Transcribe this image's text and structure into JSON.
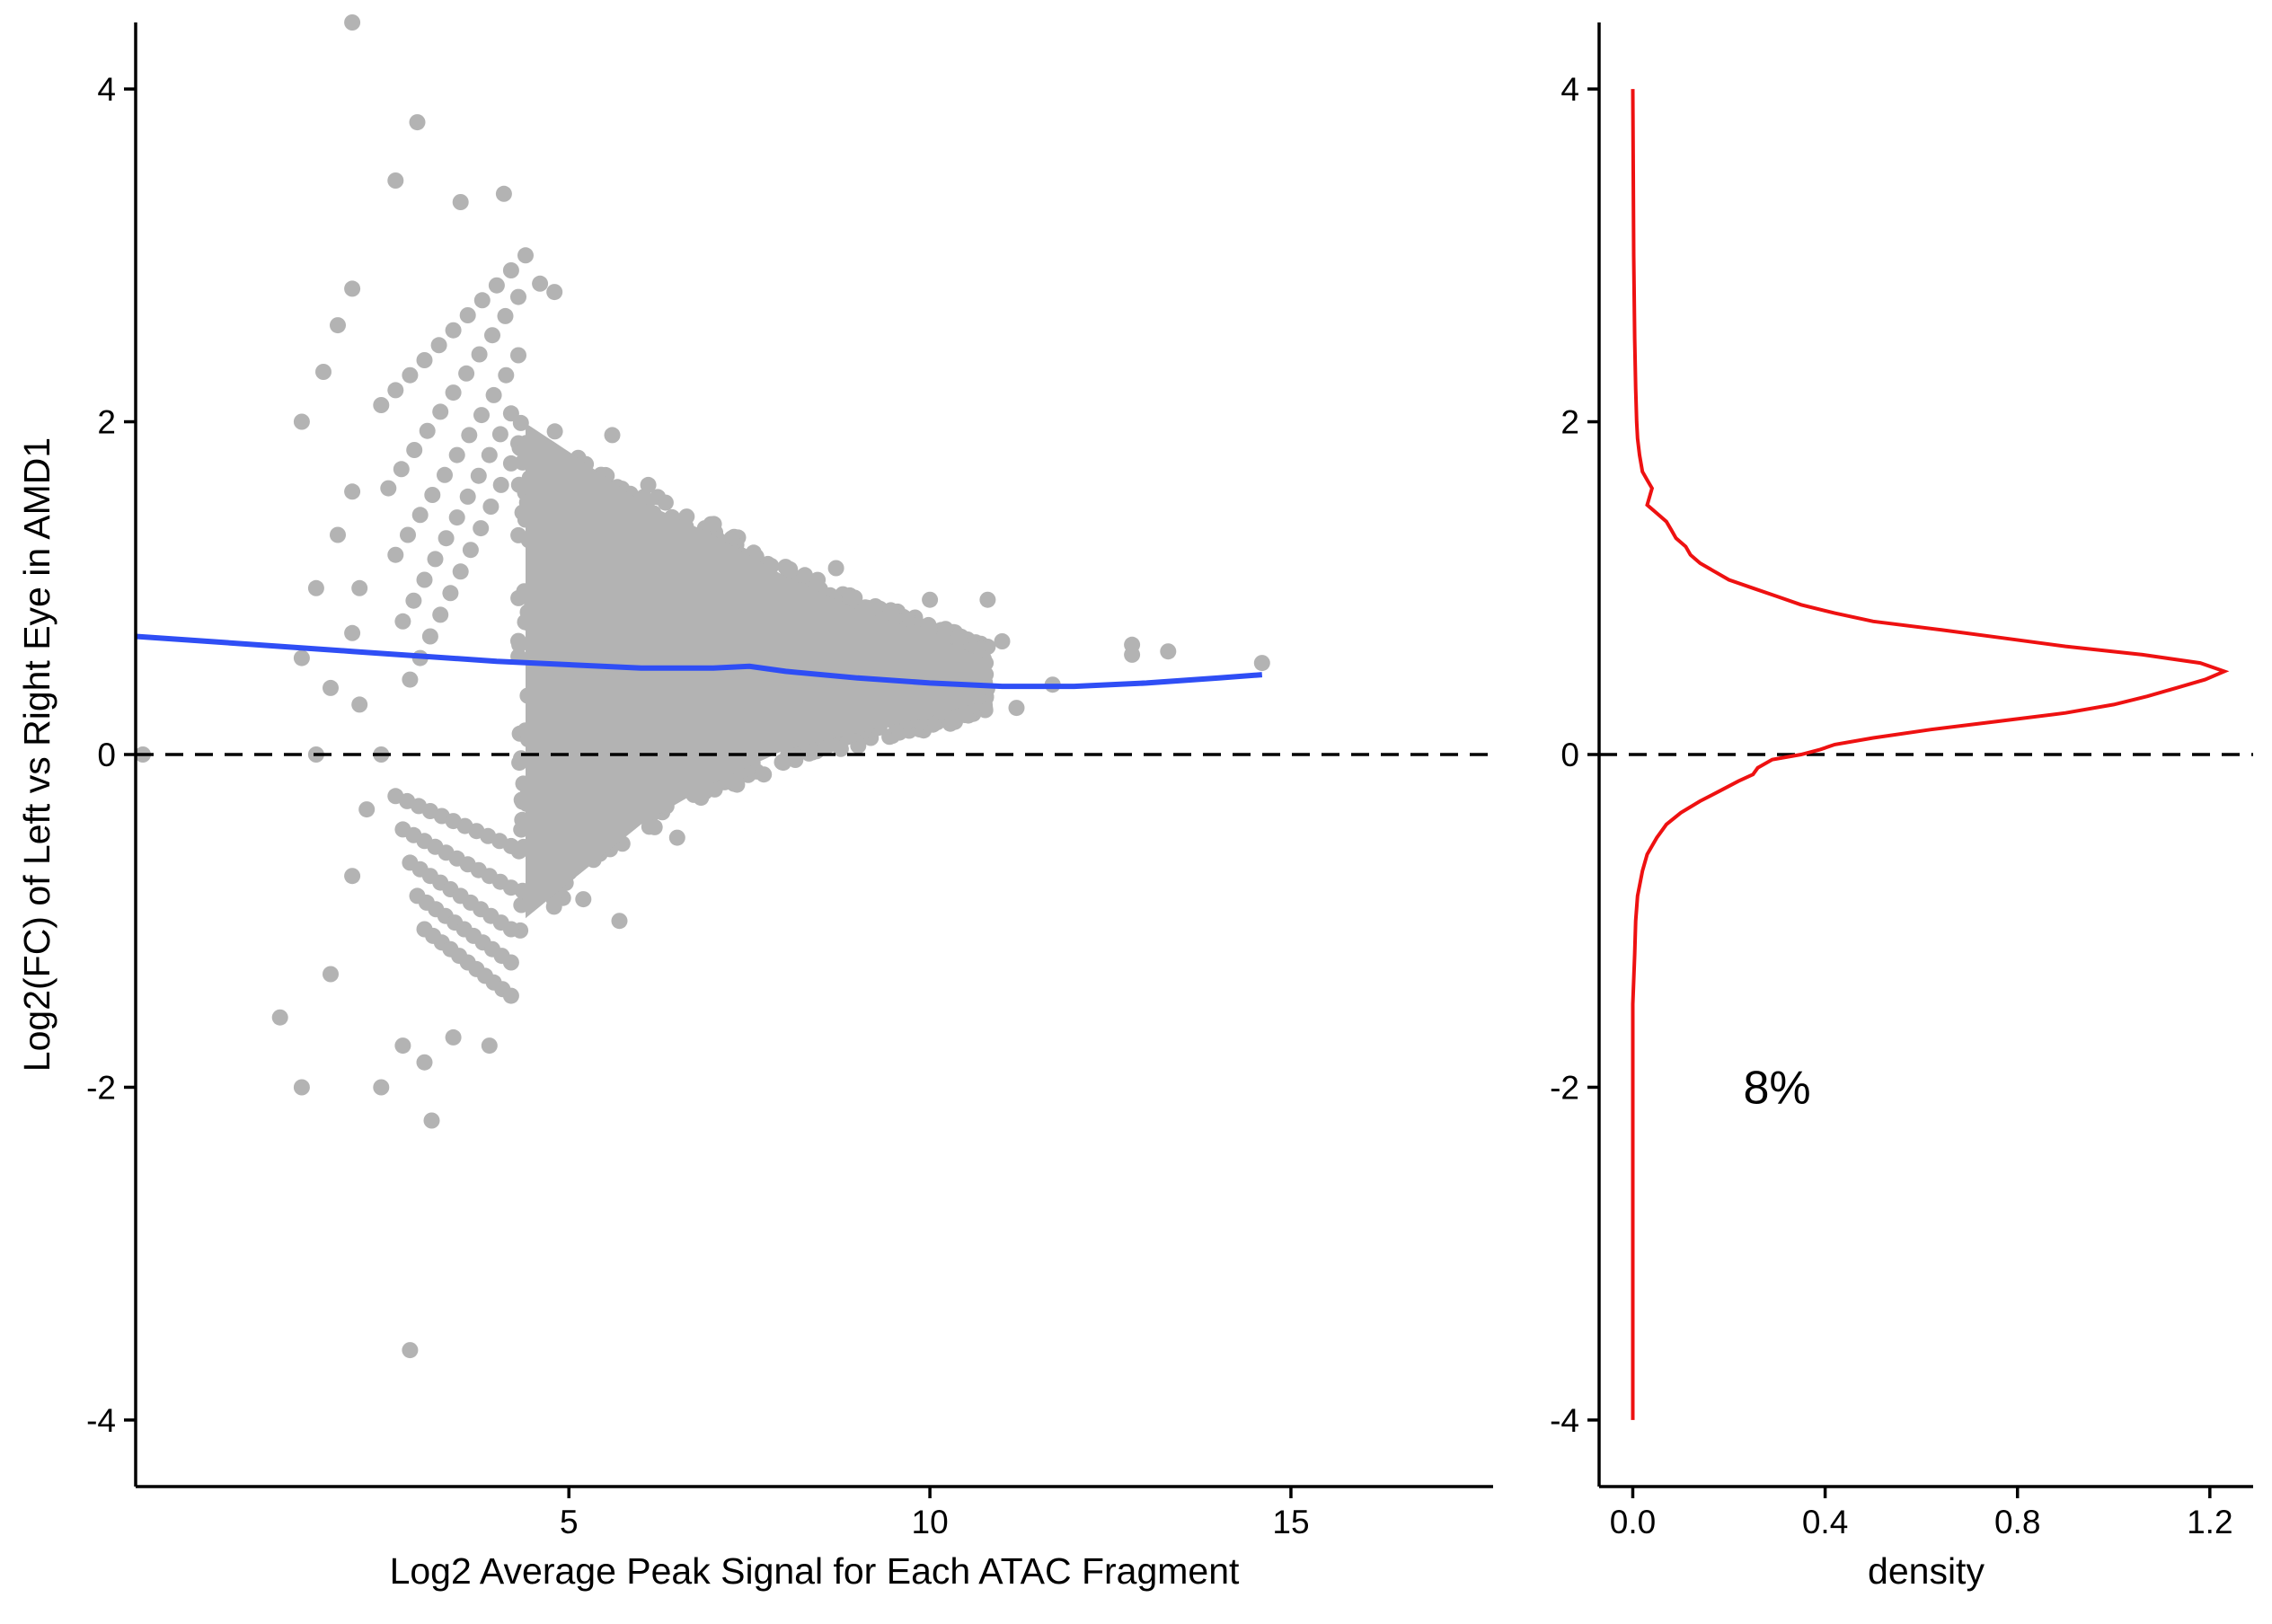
{
  "chart_data": [
    {
      "type": "scatter",
      "title": "",
      "xlabel": "Log2 Average Peak Signal for Each ATAC Fragment",
      "ylabel": "Log2(FC) of Left vs Right Eye in  AMD1",
      "xlim": [
        -1.0,
        17.8
      ],
      "ylim": [
        -4.4,
        4.4
      ],
      "xticks": [
        5,
        10,
        15
      ],
      "xtick_labels": [
        "5",
        "10",
        "15"
      ],
      "yticks": [
        -4,
        -2,
        0,
        2,
        4
      ],
      "ytick_labels": [
        "-4",
        "-2",
        "0",
        "2",
        "4"
      ],
      "grid": false,
      "reference_line": {
        "y": 0,
        "style": "dashed"
      },
      "point_color": "#b3b3b3",
      "cloud": {
        "x_range": [
          4.3,
          10.8
        ],
        "y_center": [
          [
            4.3,
            0.5
          ],
          [
            5.0,
            0.5
          ],
          [
            6.0,
            0.5
          ],
          [
            7.0,
            0.5
          ],
          [
            8.0,
            0.5
          ],
          [
            9.0,
            0.45
          ],
          [
            10.0,
            0.45
          ],
          [
            10.8,
            0.4
          ]
        ],
        "y_upper": [
          [
            4.3,
            2.1
          ],
          [
            5.0,
            1.9
          ],
          [
            6.0,
            1.6
          ],
          [
            7.0,
            1.4
          ],
          [
            8.0,
            1.15
          ],
          [
            9.0,
            0.95
          ],
          [
            10.0,
            0.8
          ],
          [
            10.8,
            0.65
          ]
        ],
        "y_lower": [
          [
            4.3,
            -1.1
          ],
          [
            5.0,
            -0.85
          ],
          [
            6.0,
            -0.5
          ],
          [
            7.0,
            -0.25
          ],
          [
            8.0,
            -0.05
          ],
          [
            9.0,
            0.05
          ],
          [
            10.0,
            0.15
          ],
          [
            10.8,
            0.25
          ]
        ]
      },
      "points": [
        {
          "x": -0.9,
          "y": 0.0
        },
        {
          "x": 2.0,
          "y": 4.4
        },
        {
          "x": 2.9,
          "y": 3.8
        },
        {
          "x": 2.6,
          "y": 3.45
        },
        {
          "x": 1.6,
          "y": 2.3
        },
        {
          "x": 2.0,
          "y": 2.8
        },
        {
          "x": 1.8,
          "y": 2.58
        },
        {
          "x": 1.3,
          "y": 2.0
        },
        {
          "x": 2.0,
          "y": 1.58
        },
        {
          "x": 1.8,
          "y": 1.32
        },
        {
          "x": 1.5,
          "y": 1.0
        },
        {
          "x": 2.1,
          "y": 1.0
        },
        {
          "x": 2.0,
          "y": 0.73
        },
        {
          "x": 1.3,
          "y": 0.58
        },
        {
          "x": 1.7,
          "y": 0.4
        },
        {
          "x": 2.1,
          "y": 0.3
        },
        {
          "x": 1.5,
          "y": 0.0
        },
        {
          "x": 2.4,
          "y": 0.0
        },
        {
          "x": 2.2,
          "y": -0.33
        },
        {
          "x": 2.0,
          "y": -0.73
        },
        {
          "x": 1.7,
          "y": -1.32
        },
        {
          "x": 1.0,
          "y": -1.58
        },
        {
          "x": 1.3,
          "y": -2.0
        },
        {
          "x": 2.4,
          "y": -2.0
        },
        {
          "x": 3.1,
          "y": -2.2
        },
        {
          "x": 2.8,
          "y": -3.58
        },
        {
          "x": 2.7,
          "y": -1.75
        },
        {
          "x": 3.0,
          "y": -1.85
        },
        {
          "x": 3.4,
          "y": -1.7
        },
        {
          "x": 3.9,
          "y": -1.75
        },
        {
          "x": 4.1,
          "y": 3.37
        },
        {
          "x": 3.5,
          "y": 3.32
        },
        {
          "x": 4.6,
          "y": 2.83
        },
        {
          "x": 4.8,
          "y": 2.78
        },
        {
          "x": 5.6,
          "y": 1.92
        },
        {
          "x": 6.1,
          "y": 1.62
        },
        {
          "x": 7.2,
          "y": 1.2
        },
        {
          "x": 8.7,
          "y": 1.12
        },
        {
          "x": 10.8,
          "y": 0.93
        },
        {
          "x": 10.0,
          "y": 0.93
        },
        {
          "x": 11.0,
          "y": 0.68
        },
        {
          "x": 12.8,
          "y": 0.66
        },
        {
          "x": 13.3,
          "y": 0.62
        },
        {
          "x": 12.8,
          "y": 0.6
        },
        {
          "x": 14.6,
          "y": 0.55
        },
        {
          "x": 11.7,
          "y": 0.42
        },
        {
          "x": 11.2,
          "y": 0.28
        },
        {
          "x": 6.5,
          "y": -0.5
        },
        {
          "x": 7.7,
          "y": -0.12
        },
        {
          "x": 5.7,
          "y": -1.0
        },
        {
          "x": 5.2,
          "y": -0.87
        }
      ],
      "fan_lines": [
        {
          "x0": 2.4,
          "y0": 2.1,
          "x1": 4.4,
          "y1": 3.0
        },
        {
          "x0": 2.5,
          "y0": 1.6,
          "x1": 4.3,
          "y1": 2.75
        },
        {
          "x0": 2.6,
          "y0": 1.2,
          "x1": 4.3,
          "y1": 2.4
        },
        {
          "x0": 2.7,
          "y0": 0.8,
          "x1": 4.2,
          "y1": 2.05
        },
        {
          "x0": 2.8,
          "y0": 0.45,
          "x1": 4.2,
          "y1": 1.75
        },
        {
          "x0": 2.6,
          "y0": -0.25,
          "x1": 4.2,
          "y1": -0.55
        },
        {
          "x0": 2.7,
          "y0": -0.45,
          "x1": 4.2,
          "y1": -0.8
        },
        {
          "x0": 2.8,
          "y0": -0.65,
          "x1": 4.2,
          "y1": -1.05
        },
        {
          "x0": 2.9,
          "y0": -0.85,
          "x1": 4.2,
          "y1": -1.25
        },
        {
          "x0": 3.0,
          "y0": -1.05,
          "x1": 4.2,
          "y1": -1.45
        }
      ],
      "series": [
        {
          "kind": "smooth",
          "color": "#2f4ef5",
          "x": [
            -1.0,
            0,
            1,
            2,
            3,
            4,
            5,
            6,
            7,
            7.5,
            8,
            9,
            10,
            11,
            12,
            13,
            14,
            14.6
          ],
          "y": [
            0.71,
            0.68,
            0.65,
            0.62,
            0.59,
            0.56,
            0.54,
            0.52,
            0.52,
            0.53,
            0.5,
            0.46,
            0.43,
            0.41,
            0.41,
            0.43,
            0.46,
            0.48
          ]
        }
      ]
    },
    {
      "type": "line",
      "title": "",
      "xlabel": "density",
      "ylabel": "",
      "xlim": [
        -0.07,
        1.29
      ],
      "ylim": [
        -4.4,
        4.4
      ],
      "xticks": [
        0.0,
        0.4,
        0.8,
        1.2
      ],
      "xtick_labels": [
        "0.0",
        "0.4",
        "0.8",
        "1.2"
      ],
      "yticks": [
        -4,
        -2,
        0,
        2,
        4
      ],
      "ytick_labels": [
        "-4",
        "-2",
        "0",
        "2",
        "4"
      ],
      "grid": false,
      "reference_line": {
        "y": 0,
        "style": "dashed"
      },
      "annotation": {
        "text": "8%",
        "x": 0.3,
        "y": -2.0
      },
      "series": [
        {
          "name": "",
          "color": "#ee1111",
          "density": [
            [
              -4.0,
              0.0
            ],
            [
              -1.5,
              0.0
            ],
            [
              -1.2,
              0.004
            ],
            [
              -1.0,
              0.006
            ],
            [
              -0.85,
              0.01
            ],
            [
              -0.7,
              0.02
            ],
            [
              -0.6,
              0.03
            ],
            [
              -0.5,
              0.05
            ],
            [
              -0.42,
              0.07
            ],
            [
              -0.35,
              0.1
            ],
            [
              -0.28,
              0.14
            ],
            [
              -0.22,
              0.18
            ],
            [
              -0.16,
              0.22
            ],
            [
              -0.12,
              0.25
            ],
            [
              -0.08,
              0.26
            ],
            [
              -0.03,
              0.29
            ],
            [
              0.0,
              0.35
            ],
            [
              0.03,
              0.39
            ],
            [
              0.06,
              0.42
            ],
            [
              0.1,
              0.5
            ],
            [
              0.15,
              0.62
            ],
            [
              0.2,
              0.76
            ],
            [
              0.25,
              0.9
            ],
            [
              0.3,
              1.0
            ],
            [
              0.35,
              1.07
            ],
            [
              0.4,
              1.13
            ],
            [
              0.45,
              1.19
            ],
            [
              0.5,
              1.23
            ],
            [
              0.55,
              1.18
            ],
            [
              0.6,
              1.06
            ],
            [
              0.65,
              0.9
            ],
            [
              0.7,
              0.77
            ],
            [
              0.75,
              0.64
            ],
            [
              0.8,
              0.5
            ],
            [
              0.85,
              0.42
            ],
            [
              0.9,
              0.35
            ],
            [
              0.95,
              0.3
            ],
            [
              1.0,
              0.25
            ],
            [
              1.05,
              0.2
            ],
            [
              1.1,
              0.17
            ],
            [
              1.15,
              0.14
            ],
            [
              1.2,
              0.12
            ],
            [
              1.25,
              0.11
            ],
            [
              1.3,
              0.09
            ],
            [
              1.35,
              0.08
            ],
            [
              1.4,
              0.07
            ],
            [
              1.45,
              0.05
            ],
            [
              1.5,
              0.03
            ],
            [
              1.55,
              0.035
            ],
            [
              1.6,
              0.04
            ],
            [
              1.65,
              0.03
            ],
            [
              1.7,
              0.02
            ],
            [
              1.8,
              0.014
            ],
            [
              1.9,
              0.01
            ],
            [
              2.0,
              0.008
            ],
            [
              2.2,
              0.006
            ],
            [
              2.5,
              0.004
            ],
            [
              3.0,
              0.002
            ],
            [
              3.5,
              0.001
            ],
            [
              4.0,
              0.0
            ]
          ]
        }
      ]
    }
  ]
}
